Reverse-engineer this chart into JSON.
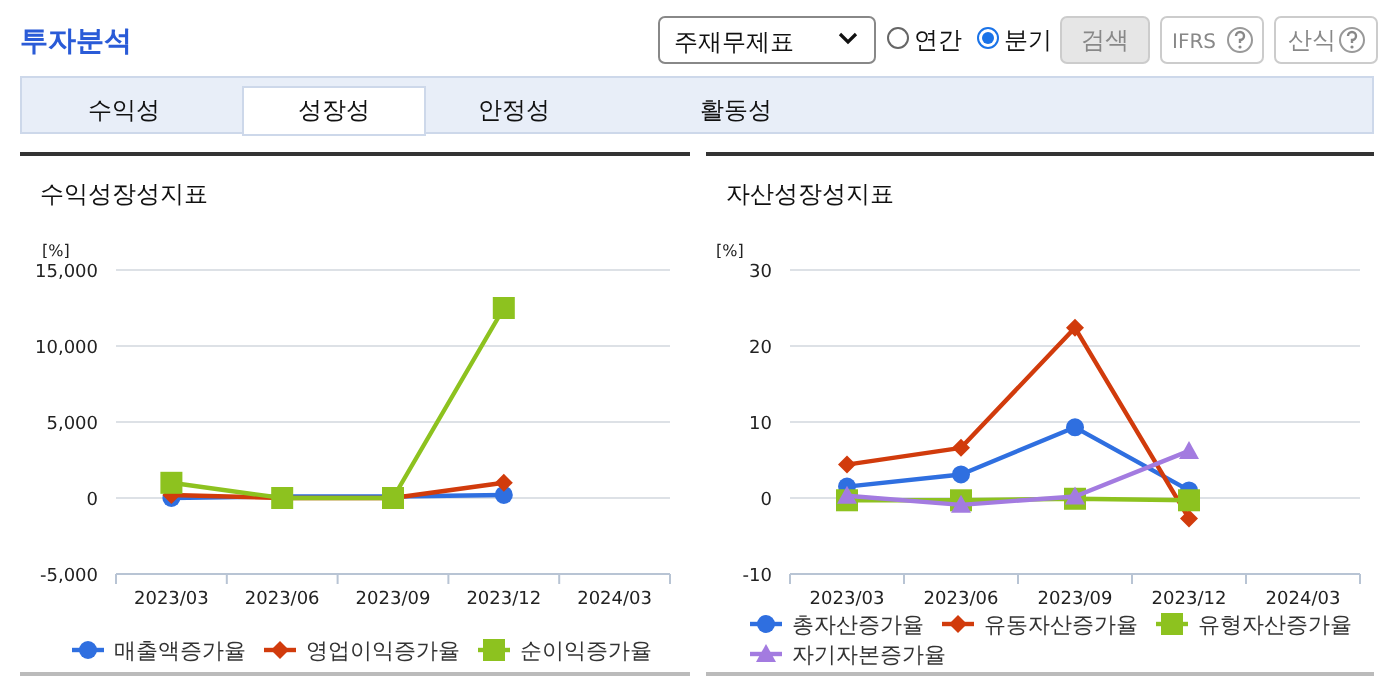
{
  "chart_data": [
    {
      "type": "other",
      "annotations": [
        "투자분석",
        "주재무제표",
        "연간",
        "분기",
        "검색",
        "IFRS",
        "산식",
        "수익성",
        "성장성",
        "안정성",
        "활동성"
      ]
    },
    {
      "type": "line",
      "title": "수익성장성지표",
      "ylabel": "[%]",
      "categories": [
        "2023/03",
        "2023/06",
        "2023/09",
        "2023/12",
        "2024/03"
      ],
      "ylim": [
        -5000,
        15000
      ],
      "yticks": [
        {
          "value": -5000,
          "label": "-5,000"
        },
        0,
        {
          "value": 5000,
          "label": "5,000"
        },
        {
          "value": 10000,
          "label": "10,000"
        },
        {
          "value": 15000,
          "label": "15,000"
        }
      ],
      "grid": "y",
      "legend": "bottom",
      "series": [
        {
          "name": "매출액증가율",
          "color": "#2f6fe0",
          "marker": "circle",
          "values": [
            0,
            100,
            100,
            200,
            null
          ]
        },
        {
          "name": "영업이익증가율",
          "color": "#d13b0c",
          "marker": "diamond",
          "values": [
            200,
            0,
            0,
            1000,
            null
          ]
        },
        {
          "name": "순이익증가율",
          "color": "#8dc21f",
          "marker": "square",
          "values": [
            1000,
            0,
            0,
            12500,
            null
          ]
        }
      ]
    },
    {
      "type": "line",
      "title": "자산성장성지표",
      "ylabel": "[%]",
      "categories": [
        "2023/03",
        "2023/06",
        "2023/09",
        "2023/12",
        "2024/03"
      ],
      "ylim": [
        -10,
        30
      ],
      "yticks": [
        -10,
        0,
        10,
        20,
        30
      ],
      "grid": "y",
      "legend": "bottom",
      "series": [
        {
          "name": "총자산증가율",
          "color": "#2f6fe0",
          "marker": "circle",
          "values": [
            1.5,
            3.1,
            9.3,
            1.0,
            null
          ]
        },
        {
          "name": "유동자산증가율",
          "color": "#d13b0c",
          "marker": "diamond",
          "values": [
            4.4,
            6.6,
            22.4,
            -2.7,
            null
          ]
        },
        {
          "name": "유형자산증가율",
          "color": "#8dc21f",
          "marker": "square",
          "values": [
            -0.3,
            -0.3,
            -0.1,
            -0.3,
            null
          ]
        },
        {
          "name": "자기자본증가율",
          "color": "#a37be0",
          "marker": "triangle",
          "values": [
            0.3,
            -0.9,
            0.2,
            6.2,
            null
          ]
        }
      ]
    }
  ]
}
